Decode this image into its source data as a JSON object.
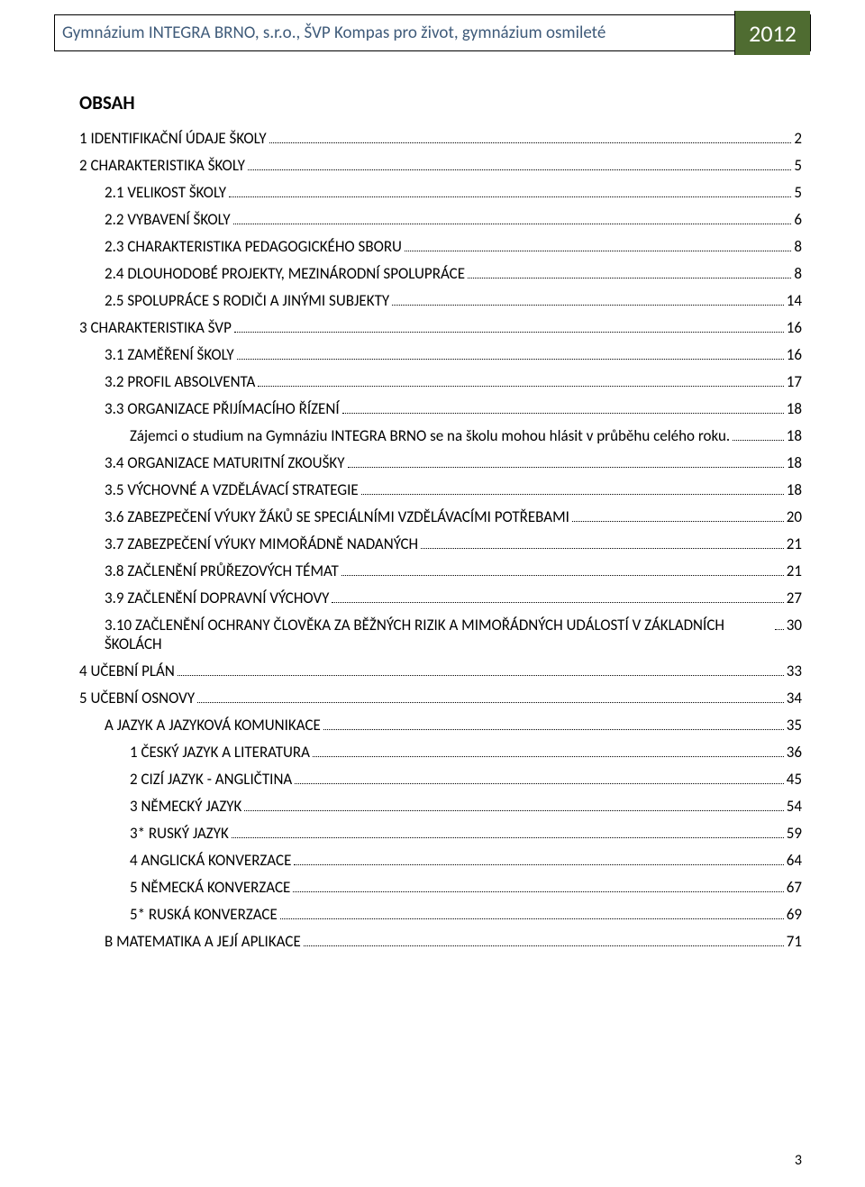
{
  "header": {
    "title": "Gymnázium INTEGRA BRNO, s.r.o., ŠVP Kompas pro život, gymnázium osmileté",
    "year": "2012"
  },
  "contents_heading": "OBSAH",
  "page_number": "3",
  "toc": [
    {
      "indent": 0,
      "label": "1 IDENTIFIKAČNÍ ÚDAJE ŠKOLY",
      "page": "2"
    },
    {
      "indent": 0,
      "label": "2 CHARAKTERISTIKA ŠKOLY",
      "page": "5"
    },
    {
      "indent": 1,
      "label": "2.1 VELIKOST ŠKOLY",
      "page": "5"
    },
    {
      "indent": 1,
      "label": "2.2 VYBAVENÍ ŠKOLY",
      "page": "6"
    },
    {
      "indent": 1,
      "label": "2.3 CHARAKTERISTIKA PEDAGOGICKÉHO SBORU",
      "page": "8"
    },
    {
      "indent": 1,
      "label": "2.4 DLOUHODOBÉ PROJEKTY, MEZINÁRODNÍ SPOLUPRÁCE",
      "page": "8"
    },
    {
      "indent": 1,
      "label": "2.5 SPOLUPRÁCE S RODIČI A JINÝMI SUBJEKTY",
      "page": "14"
    },
    {
      "indent": 0,
      "label": "3 CHARAKTERISTIKA ŠVP",
      "page": "16"
    },
    {
      "indent": 1,
      "label": "3.1 ZAMĚŘENÍ ŠKOLY",
      "page": "16"
    },
    {
      "indent": 1,
      "label": "3.2 PROFIL ABSOLVENTA",
      "page": "17"
    },
    {
      "indent": 1,
      "label": "3.3 ORGANIZACE PŘIJÍMACÍHO ŘÍZENÍ",
      "page": "18"
    },
    {
      "indent": 2,
      "label": "Zájemci o studium na Gymnáziu INTEGRA BRNO se na školu mohou hlásit v průběhu celého roku.",
      "page": "18",
      "wrap": true
    },
    {
      "indent": 1,
      "label": "3.4 ORGANIZACE MATURITNÍ ZKOUŠKY",
      "page": "18"
    },
    {
      "indent": 1,
      "label": "3.5 VÝCHOVNÉ A VZDĚLÁVACÍ STRATEGIE",
      "page": "18"
    },
    {
      "indent": 1,
      "label": "3.6 ZABEZPEČENÍ VÝUKY ŽÁKŮ SE SPECIÁLNÍMI VZDĚLÁVACÍMI POTŘEBAMI",
      "page": "20"
    },
    {
      "indent": 1,
      "label": "3.7 ZABEZPEČENÍ VÝUKY MIMOŘÁDNĚ NADANÝCH",
      "page": "21"
    },
    {
      "indent": 1,
      "label": "3.8 ZAČLENĚNÍ PRŮŘEZOVÝCH TÉMAT",
      "page": "21"
    },
    {
      "indent": 1,
      "label": "3.9 ZAČLENĚNÍ DOPRAVNÍ VÝCHOVY",
      "page": "27"
    },
    {
      "indent": 1,
      "label": "3.10 ZAČLENĚNÍ OCHRANY ČLOVĚKA ZA BĚŽNÝCH RIZIK A MIMOŘÁDNÝCH UDÁLOSTÍ V ZÁKLADNÍCH ŠKOLÁCH",
      "page": "30",
      "wrap": true
    },
    {
      "indent": 0,
      "label": "4 UČEBNÍ PLÁN",
      "page": "33"
    },
    {
      "indent": 0,
      "label": "5 UČEBNÍ OSNOVY",
      "page": "34"
    },
    {
      "indent": 1,
      "label": "A  JAZYK A JAZYKOVÁ KOMUNIKACE",
      "page": "35"
    },
    {
      "indent": 2,
      "label": "1 ČESKÝ JAZYK A LITERATURA",
      "page": "36"
    },
    {
      "indent": 2,
      "label": "2 CIZÍ JAZYK - ANGLIČTINA",
      "page": "45"
    },
    {
      "indent": 2,
      "label": "3 NĚMECKÝ JAZYK",
      "page": "54"
    },
    {
      "indent": 2,
      "label": "3* RUSKÝ JAZYK",
      "page": "59"
    },
    {
      "indent": 2,
      "label": "4 ANGLICKÁ KONVERZACE",
      "page": "64"
    },
    {
      "indent": 2,
      "label": "5 NĚMECKÁ KONVERZACE",
      "page": "67"
    },
    {
      "indent": 2,
      "label": "5* RUSKÁ KONVERZACE",
      "page": "69"
    },
    {
      "indent": 1,
      "label": "B MATEMATIKA A JEJÍ APLIKACE",
      "page": "71"
    }
  ]
}
